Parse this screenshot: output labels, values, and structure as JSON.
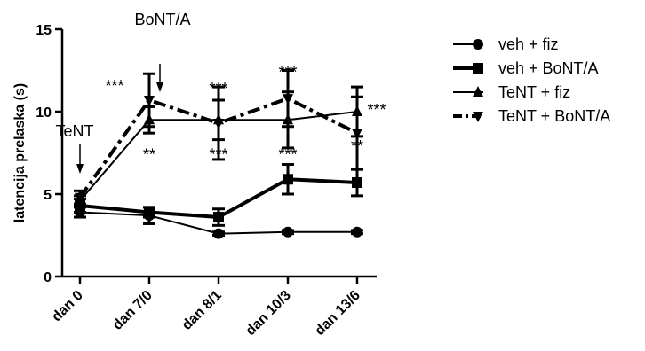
{
  "chart_data": {
    "type": "line",
    "title": "",
    "xlabel": "",
    "ylabel": "latencija prelaska (s)",
    "ylim": [
      0,
      15
    ],
    "yticks": [
      0,
      5,
      10,
      15
    ],
    "categories": [
      "dan 0",
      "dan 7/0",
      "dan 8/1",
      "dan 10/3",
      "dan 13/6"
    ],
    "legend_position": "right",
    "series": [
      {
        "name": "veh + fiz",
        "marker": "circle",
        "line": "solid",
        "line_width": "thin",
        "values": [
          3.9,
          3.7,
          2.6,
          2.7,
          2.7
        ],
        "errors": [
          0.3,
          0.5,
          0.1,
          0.1,
          0.1
        ]
      },
      {
        "name": "veh + BoNT/A",
        "marker": "square",
        "line": "solid",
        "line_width": "thick",
        "values": [
          4.3,
          3.9,
          3.6,
          5.9,
          5.7
        ],
        "errors": [
          0.4,
          0.3,
          0.5,
          0.9,
          0.8
        ]
      },
      {
        "name": "TeNT + fiz",
        "marker": "triangle-up",
        "line": "solid",
        "line_width": "thin",
        "values": [
          4.6,
          9.5,
          9.5,
          9.5,
          10.0
        ],
        "errors": [
          0.3,
          0.8,
          1.2,
          1.7,
          1.5
        ]
      },
      {
        "name": "TeNT + BoNT/A",
        "marker": "triangle-down",
        "line": "dashdot",
        "line_width": "thick",
        "values": [
          4.8,
          10.7,
          9.3,
          10.8,
          8.7
        ],
        "errors": [
          0.4,
          1.6,
          2.2,
          1.7,
          2.2
        ]
      }
    ],
    "annotations": {
      "tent_label": "TeNT",
      "bonta_label": "BoNT/A",
      "significance": [
        {
          "text": "***",
          "category": "dan 7/0",
          "position": "above-left"
        },
        {
          "text": "**",
          "category": "dan 7/0",
          "position": "below"
        },
        {
          "text": "***",
          "category": "dan 8/1",
          "position": "above"
        },
        {
          "text": "***",
          "category": "dan 8/1",
          "position": "below"
        },
        {
          "text": "***",
          "category": "dan 10/3",
          "position": "above"
        },
        {
          "text": "***",
          "category": "dan 10/3",
          "position": "below"
        },
        {
          "text": "***",
          "category": "dan 13/6",
          "position": "above-right"
        },
        {
          "text": "**",
          "category": "dan 13/6",
          "position": "below"
        }
      ]
    }
  }
}
